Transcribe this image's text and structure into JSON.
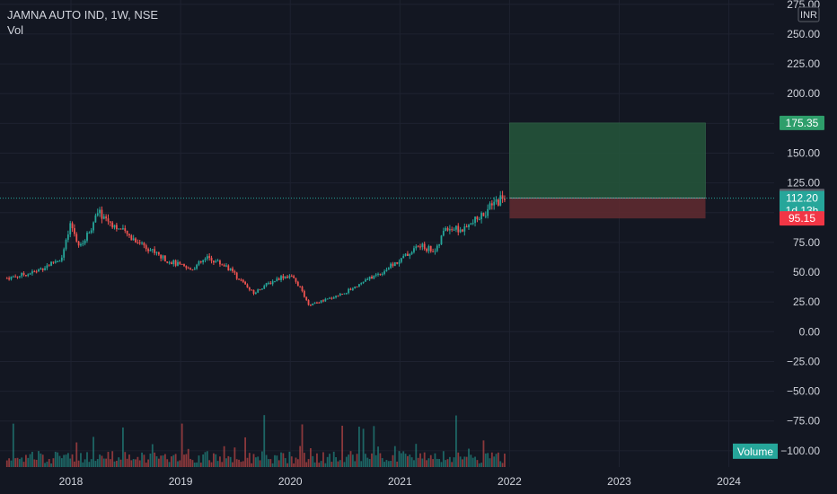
{
  "header": {
    "symbol": "JAMNA AUTO IND, 1W, NSE",
    "indicator": "Vol"
  },
  "currency": "INR",
  "volume_label": "Volume",
  "colors": {
    "background": "#131722",
    "grid": "#1e2230",
    "text": "#d1d4dc",
    "up": "#26a69a",
    "down": "#ef5350",
    "target_zone": "#24533a",
    "stop_zone": "#5e2a30",
    "target_label": "#2e9e6b",
    "stop_label": "#f23645",
    "price_label": "#5d606b",
    "last_label": "#26a69a"
  },
  "chart_data": {
    "type": "candlestick",
    "title": "JAMNA AUTO IND, 1W, NSE",
    "xlabel": "",
    "ylabel": "",
    "x_ticks": [
      "2018",
      "2019",
      "2020",
      "2021",
      "2022",
      "2023",
      "2024"
    ],
    "y_ticks": [
      "275.00",
      "250.00",
      "225.00",
      "200.00",
      "175.00",
      "150.00",
      "125.00",
      "100.00",
      "75.00",
      "50.00",
      "25.00",
      "0.00",
      "−25.00",
      "−50.00",
      "−75.00",
      "−100.00"
    ],
    "ylim": [
      -110,
      275
    ],
    "price_path": [
      {
        "date": "2017-06",
        "close": 45
      },
      {
        "date": "2017-09",
        "close": 50
      },
      {
        "date": "2017-12",
        "close": 62
      },
      {
        "date": "2018-01",
        "close": 90
      },
      {
        "date": "2018-02",
        "close": 70
      },
      {
        "date": "2018-04",
        "close": 100
      },
      {
        "date": "2018-07",
        "close": 82
      },
      {
        "date": "2018-09",
        "close": 73
      },
      {
        "date": "2018-11",
        "close": 62
      },
      {
        "date": "2019-02",
        "close": 52
      },
      {
        "date": "2019-04",
        "close": 62
      },
      {
        "date": "2019-06",
        "close": 55
      },
      {
        "date": "2019-09",
        "close": 32
      },
      {
        "date": "2019-10",
        "close": 38
      },
      {
        "date": "2019-12",
        "close": 46
      },
      {
        "date": "2020-01",
        "close": 47
      },
      {
        "date": "2020-02",
        "close": 38
      },
      {
        "date": "2020-03",
        "close": 22
      },
      {
        "date": "2020-05",
        "close": 27
      },
      {
        "date": "2020-07",
        "close": 33
      },
      {
        "date": "2020-09",
        "close": 42
      },
      {
        "date": "2020-11",
        "close": 50
      },
      {
        "date": "2021-01",
        "close": 60
      },
      {
        "date": "2021-03",
        "close": 72
      },
      {
        "date": "2021-05",
        "close": 68
      },
      {
        "date": "2021-06",
        "close": 88
      },
      {
        "date": "2021-08",
        "close": 85
      },
      {
        "date": "2021-10",
        "close": 98
      },
      {
        "date": "2021-12",
        "close": 112
      }
    ],
    "last_price": 114.05,
    "current_price": 112.2,
    "countdown": "1d 13h",
    "position": {
      "target": 175.35,
      "entry": 112.2,
      "stop": 95.15,
      "start": "2022-01",
      "end": "2023-12"
    }
  }
}
